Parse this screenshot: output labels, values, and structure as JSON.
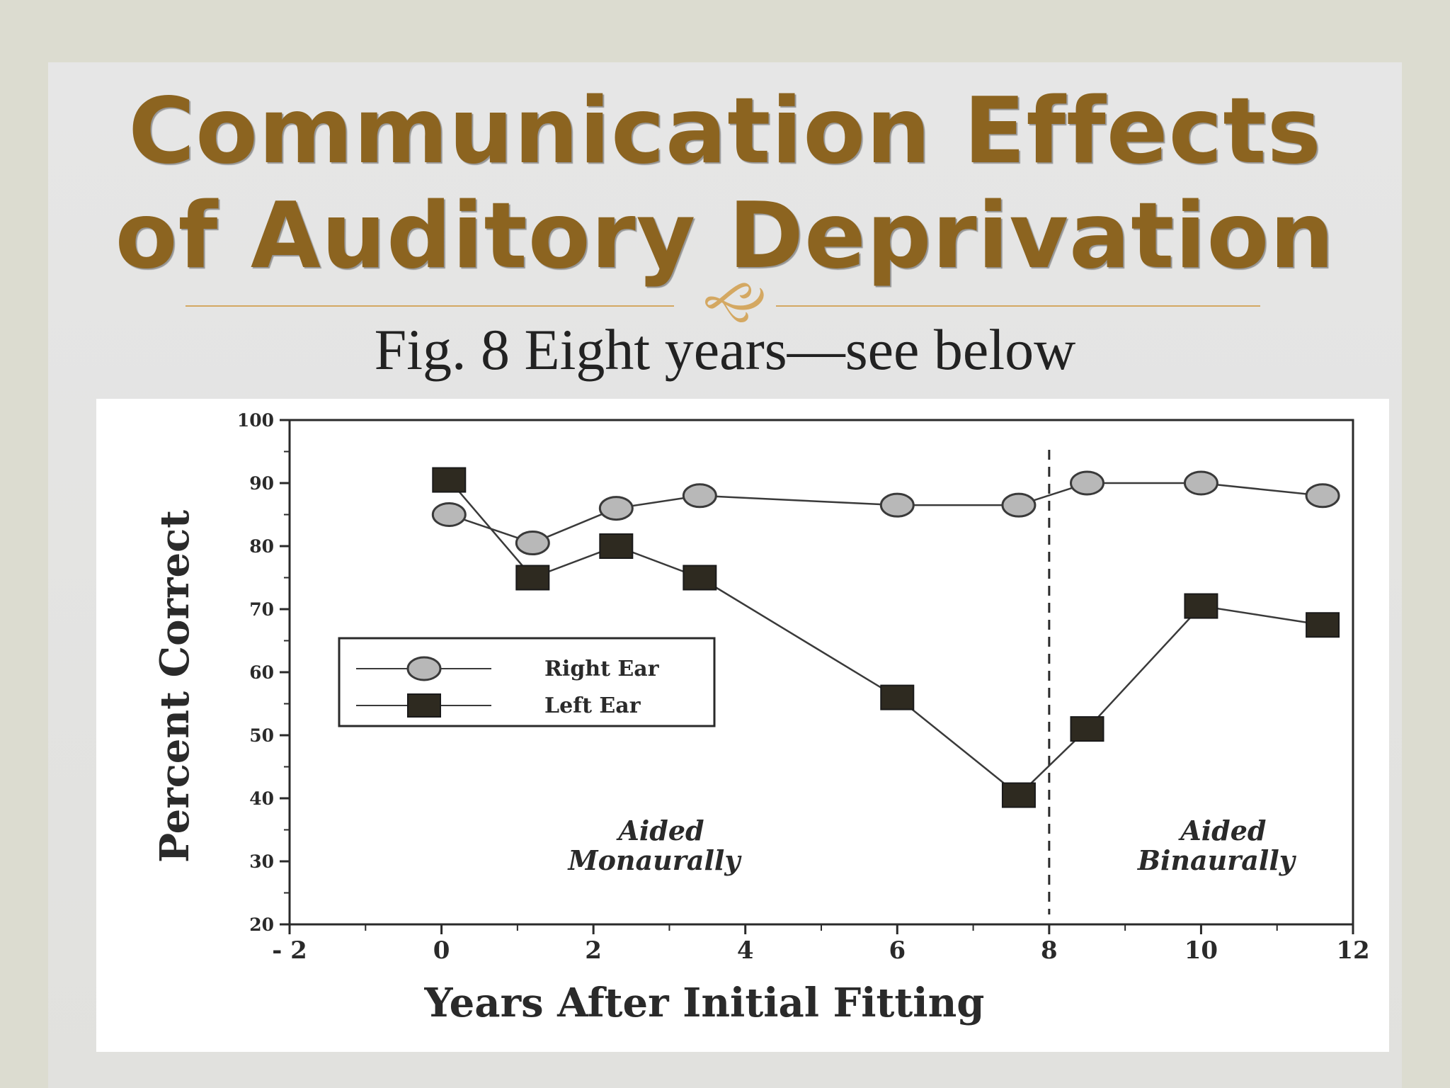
{
  "slide": {
    "title_line1": "Communication Effects",
    "title_line2": "of Auditory Deprivation",
    "subtitle": "Fig. 8  Eight years—see below",
    "ornament_icon": "florish-ornament-icon",
    "colors": {
      "title": "#8c6420",
      "accent": "#d4a862",
      "background": "#dcdcd0"
    }
  },
  "chart_data": {
    "type": "line",
    "title": "",
    "xlabel": "Years  After  Initial  Fitting",
    "ylabel": "Percent  Correct",
    "xlim": [
      -2,
      12
    ],
    "ylim": [
      20,
      100
    ],
    "x_ticks": [
      -2,
      0,
      2,
      4,
      6,
      8,
      10,
      12
    ],
    "x_tick_labels": [
      "- 2",
      "0",
      "2",
      "4",
      "6",
      "8",
      "10",
      "12"
    ],
    "y_ticks": [
      20,
      30,
      40,
      50,
      60,
      70,
      80,
      90,
      100
    ],
    "grid": false,
    "legend_position": "left-middle",
    "series": [
      {
        "name": "Right  Ear",
        "marker": "circle",
        "points": [
          [
            0.1,
            85
          ],
          [
            1.2,
            80.5
          ],
          [
            2.3,
            86
          ],
          [
            3.4,
            88
          ],
          [
            6.0,
            86.5
          ],
          [
            7.6,
            86.5
          ],
          [
            8.5,
            90
          ],
          [
            10.0,
            90
          ],
          [
            11.6,
            88
          ]
        ]
      },
      {
        "name": "Left  Ear",
        "marker": "square",
        "points": [
          [
            0.1,
            90.5
          ],
          [
            1.2,
            75
          ],
          [
            2.3,
            80
          ],
          [
            3.4,
            75
          ],
          [
            6.0,
            56
          ],
          [
            7.6,
            40.5
          ],
          [
            8.5,
            51
          ],
          [
            10.0,
            70.5
          ],
          [
            11.6,
            67.5
          ]
        ]
      }
    ],
    "divider_x": 8,
    "annotations": [
      {
        "text_line1": "Aided",
        "text_line2": "Monaurally",
        "x": 2.8,
        "y": 30
      },
      {
        "text_line1": "Aided",
        "text_line2": "Binaurally",
        "x": 10.2,
        "y": 30
      }
    ]
  }
}
